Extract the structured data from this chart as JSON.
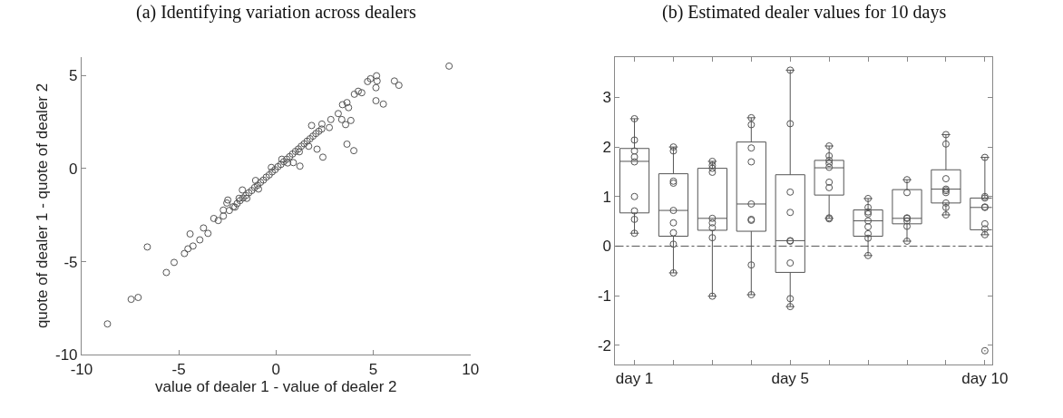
{
  "chart_data": [
    {
      "type": "scatter",
      "title": "(a) Identifying variation across dealers",
      "xlabel": "value of dealer 1 - value of dealer 2",
      "ylabel": "quote of dealer 1 - quote of dealer 2",
      "color": "#555555",
      "marker": "circle",
      "xlim": [
        -10,
        10
      ],
      "xticks": [
        -10,
        -5,
        0,
        5,
        10
      ],
      "ylim": [
        -10,
        6
      ],
      "yticks": [
        -10,
        -5,
        0,
        5
      ],
      "x": [
        -8.67,
        -7.45,
        -7.09,
        -5.64,
        -6.62,
        -5.24,
        -4.71,
        -4.53,
        -4.27,
        -4.42,
        -3.92,
        -3.73,
        -3.5,
        -3.2,
        -2.97,
        -2.71,
        -2.48,
        -2.53,
        -2.71,
        -2.11,
        -1.73,
        -1.05,
        -0.24,
        -2.4,
        -2.2,
        -2.0,
        -1.85,
        -1.7,
        -1.55,
        -1.4,
        -1.25,
        -1.1,
        -0.95,
        -0.8,
        -0.65,
        -0.5,
        -0.35,
        -0.2,
        -0.05,
        0.1,
        0.25,
        0.4,
        0.55,
        0.7,
        0.85,
        1.0,
        1.15,
        1.3,
        1.45,
        1.6,
        1.75,
        1.9,
        2.05,
        2.2,
        2.35,
        -1.9,
        -1.5,
        0.6,
        1.2,
        -0.9,
        0.3,
        1.23,
        0.89,
        2.11,
        1.68,
        2.41,
        1.83,
        2.74,
        2.36,
        2.82,
        3.38,
        3.58,
        3.85,
        3.65,
        4.0,
        3.2,
        3.42,
        3.73,
        3.65,
        4.03,
        4.41,
        4.23,
        4.71,
        4.86,
        5.17,
        5.2,
        5.14,
        5.14,
        5.52,
        6.09,
        6.32,
        8.9
      ],
      "values": [
        -8.34,
        -7.02,
        -6.92,
        -5.58,
        -4.21,
        -5.04,
        -4.56,
        -4.31,
        -4.16,
        -3.51,
        -3.83,
        -3.19,
        -3.48,
        -2.68,
        -2.79,
        -2.55,
        -1.69,
        -1.85,
        -2.23,
        -2.07,
        -1.15,
        -0.64,
        0.06,
        -2.25,
        -2.05,
        -1.88,
        -1.72,
        -1.58,
        -1.45,
        -1.3,
        -1.18,
        -1.02,
        -0.9,
        -0.74,
        -0.62,
        -0.46,
        -0.34,
        -0.18,
        -0.06,
        0.1,
        0.22,
        0.37,
        0.5,
        0.64,
        0.78,
        0.92,
        1.05,
        1.2,
        1.33,
        1.47,
        1.6,
        1.74,
        1.88,
        2.0,
        2.12,
        -1.6,
        -1.6,
        0.3,
        0.9,
        -1.1,
        0.5,
        0.13,
        0.32,
        1.04,
        1.2,
        0.61,
        2.31,
        2.2,
        2.39,
        2.63,
        2.63,
        2.36,
        2.58,
        1.31,
        0.96,
        2.95,
        3.43,
        3.27,
        3.54,
        3.99,
        4.07,
        4.15,
        4.67,
        4.82,
        4.98,
        4.7,
        4.34,
        3.64,
        3.46,
        4.7,
        4.47,
        5.5
      ]
    },
    {
      "type": "box",
      "title": "(b) Estimated dealer values for 10 days",
      "color": "#555555",
      "categories": [
        "day 1",
        null,
        null,
        null,
        "day 5",
        null,
        null,
        null,
        null,
        "day 10"
      ],
      "ylim": [
        -2.39,
        3.82
      ],
      "yticks": [
        -2,
        -1,
        0,
        1,
        2,
        3
      ],
      "boxes": [
        {
          "low": 0.26,
          "q1": 0.67,
          "median": 1.71,
          "q3": 1.97,
          "high": 2.57
        },
        {
          "low": -0.54,
          "q1": 0.2,
          "median": 0.72,
          "q3": 1.46,
          "high": 2.0
        },
        {
          "low": -1.01,
          "q1": 0.32,
          "median": 0.56,
          "q3": 1.57,
          "high": 1.71
        },
        {
          "low": -0.98,
          "q1": 0.3,
          "median": 0.85,
          "q3": 2.1,
          "high": 2.59
        },
        {
          "low": -1.22,
          "q1": -0.53,
          "median": 0.11,
          "q3": 1.44,
          "high": 3.55
        },
        {
          "low": 0.56,
          "q1": 1.03,
          "median": 1.58,
          "q3": 1.73,
          "high": 2.02
        },
        {
          "low": -0.19,
          "q1": 0.2,
          "median": 0.51,
          "q3": 0.73,
          "high": 0.96
        },
        {
          "low": 0.1,
          "q1": 0.45,
          "median": 0.56,
          "q3": 1.14,
          "high": 1.34
        },
        {
          "low": 0.63,
          "q1": 0.87,
          "median": 1.15,
          "q3": 1.54,
          "high": 2.25
        },
        {
          "low": 0.23,
          "q1": 0.33,
          "median": 0.78,
          "q3": 0.97,
          "high": 1.79,
          "outliers": [
            -2.11
          ]
        }
      ],
      "marker": "circle",
      "series": [
        {
          "type": "scatter",
          "color": "#555555",
          "values": [
            2.57,
            2.0,
            1.71,
            2.59,
            3.55,
            2.02,
            0.96,
            1.34,
            2.25,
            1.79
          ]
        },
        {
          "type": "scatter",
          "color": "#555555",
          "values": [
            2.14,
            1.92,
            1.63,
            2.45,
            2.47,
            1.82,
            0.78,
            1.08,
            2.06,
            1.0
          ]
        },
        {
          "type": "scatter",
          "color": "#555555",
          "values": [
            1.92,
            1.31,
            1.57,
            1.98,
            1.09,
            1.73,
            0.69,
            0.57,
            1.36,
            0.97
          ]
        },
        {
          "type": "scatter",
          "color": "#555555",
          "values": [
            1.8,
            1.27,
            1.49,
            1.7,
            0.68,
            1.67,
            0.65,
            0.56,
            1.15,
            0.79
          ]
        },
        {
          "type": "scatter",
          "color": "#555555",
          "values": [
            1.7,
            0.72,
            0.56,
            0.85,
            0.11,
            1.59,
            0.51,
            0.51,
            1.12,
            0.78
          ]
        },
        {
          "type": "scatter",
          "color": "#555555",
          "values": [
            1.0,
            0.47,
            0.47,
            0.54,
            0.1,
            1.29,
            0.39,
            0.4,
            1.08,
            0.45
          ]
        },
        {
          "type": "scatter",
          "color": "#555555",
          "values": [
            0.71,
            0.27,
            0.37,
            0.52,
            -0.34,
            1.18,
            0.25,
            0.1,
            0.87,
            0.35
          ]
        },
        {
          "type": "scatter",
          "color": "#555555",
          "values": [
            0.54,
            0.04,
            0.17,
            -0.38,
            -1.06,
            0.57,
            0.16,
            null,
            0.78,
            0.23
          ]
        },
        {
          "type": "scatter",
          "color": "#555555",
          "values": [
            0.26,
            -0.54,
            -1.01,
            -0.98,
            -1.22,
            0.55,
            -0.19,
            null,
            0.63,
            null
          ]
        }
      ],
      "ref_lines": [
        {
          "axis": "y",
          "value": 0,
          "line_style": "dashed",
          "color": "#555555"
        }
      ]
    }
  ]
}
